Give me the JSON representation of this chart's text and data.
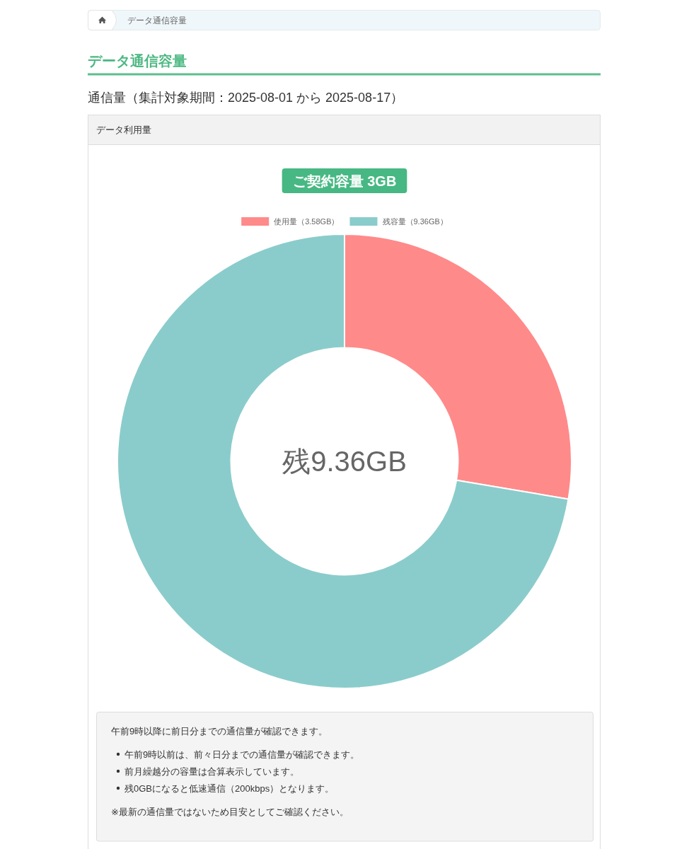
{
  "chart_data": {
    "type": "donut",
    "title": "データ通信容量",
    "subtitle": "通信量（集計対象期間：2025-08-01 から 2025-08-17）",
    "categories": [
      "使用量（3.58GB）",
      "残容量（9.36GB）"
    ],
    "values": [
      3.58,
      9.36
    ],
    "colors": [
      "#ff8a8a",
      "#8acccb"
    ],
    "legend": "top",
    "annotations": [
      "データ通信容量",
      "データ利用量",
      "ご契約容量 3GB",
      "残9.36GB",
      "午前9時以降に前日分までの通信量が確認できます。",
      "午前9時以前は、前々日分までの通信量が確認できます。",
      "前月繰越分の容量は合算表示しています。",
      "残0GBになると低速通信（200kbps）となります。",
      "※最新の通信量ではないため目安としてご確認ください。"
    ]
  }
}
